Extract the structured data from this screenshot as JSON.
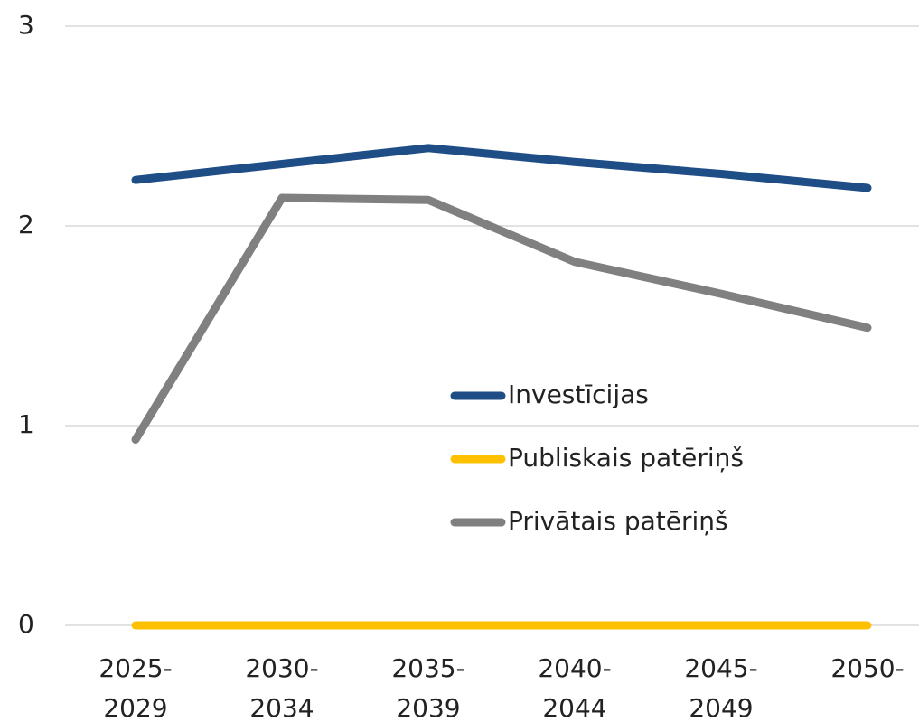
{
  "chart_data": {
    "type": "line",
    "categories": [
      "2025-2029",
      "2030-2034",
      "2035-2039",
      "2040-2044",
      "2045-2049",
      "2050-"
    ],
    "series": [
      {
        "name": "Investīcijas",
        "color": "#1f4e87",
        "values": [
          2.23,
          2.31,
          2.39,
          2.32,
          2.26,
          2.19
        ]
      },
      {
        "name": "Publiskais patēriņš",
        "color": "#ffc000",
        "values": [
          0,
          0,
          0,
          0,
          0,
          0
        ]
      },
      {
        "name": "Privātais patēriņš",
        "color": "#808080",
        "values": [
          0.93,
          2.14,
          2.13,
          1.82,
          1.66,
          1.49
        ]
      }
    ],
    "ylim": [
      0,
      3
    ],
    "yticks": [
      0,
      1,
      2,
      3
    ],
    "grid": true
  }
}
